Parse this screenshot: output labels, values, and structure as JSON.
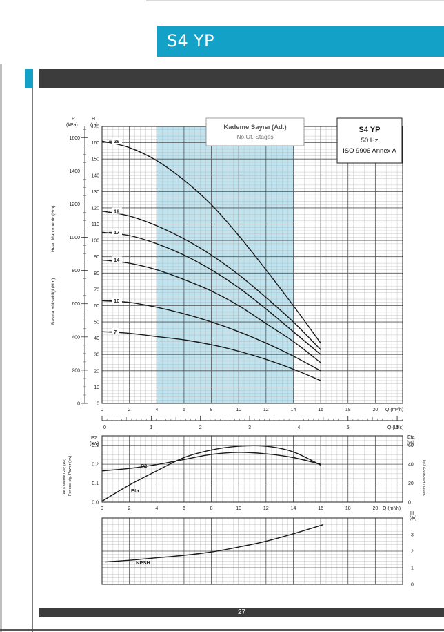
{
  "page": {
    "title": "S4 YP",
    "page_number": "27"
  },
  "chart_data": [
    {
      "type": "line",
      "id": "head",
      "stage_box": {
        "line1": "Kademe Sayısı (Ad.)",
        "line2": "No.Of. Stages"
      },
      "model_box": {
        "line1": "S4 YP",
        "line2": "50 Hz",
        "line3": "ISO 9906 Annex A"
      },
      "y_unit_left": [
        "P",
        "(kPa)"
      ],
      "y_unit_right": [
        "H",
        "(m)"
      ],
      "ylabel_outer": "Head Manometric (Hm)",
      "ylabel_inner": "Basma Yüksekliği (Hm)",
      "xlim": [
        0,
        22
      ],
      "ylim": [
        0,
        170
      ],
      "xticks": [
        0,
        2,
        4,
        6,
        8,
        10,
        12,
        14,
        16,
        18,
        20
      ],
      "xtick_labels": [
        "0",
        "2",
        "4",
        "6",
        "8",
        "10",
        "12",
        "14",
        "16",
        "18",
        "20"
      ],
      "xlabel": "Q (m³/h)",
      "yticks": [
        0,
        10,
        20,
        30,
        40,
        50,
        60,
        70,
        80,
        90,
        100,
        110,
        120,
        130,
        140,
        150,
        160,
        170
      ],
      "ytick_labels": [
        "0",
        "10",
        "20",
        "30",
        "40",
        "50",
        "60",
        "70",
        "80",
        "90",
        "100",
        "110",
        "120",
        "130",
        "140",
        "150",
        "160",
        "170"
      ],
      "kpa_ticks": [
        0,
        200,
        400,
        600,
        800,
        1000,
        1200,
        1400,
        1600
      ],
      "kpa_labels": [
        "0",
        "200",
        "400",
        "600",
        "800",
        "1000",
        "1200",
        "1400",
        "1600"
      ],
      "operating_range": [
        4,
        14
      ],
      "lts_axis": {
        "xlabel": "Q (Lt/s)",
        "ticks": [
          0,
          1,
          2,
          3,
          4,
          5,
          6
        ],
        "tick_labels": [
          "0",
          "1",
          "2",
          "3",
          "4",
          "5",
          "6"
        ]
      },
      "series": [
        {
          "name": "26",
          "x": [
            0,
            2,
            4,
            6,
            8,
            10,
            12,
            14,
            16
          ],
          "y": [
            161,
            157,
            149,
            137,
            122,
            103,
            82,
            60,
            37
          ]
        },
        {
          "name": "19",
          "x": [
            0,
            2,
            4,
            6,
            8,
            10,
            12,
            14,
            16
          ],
          "y": [
            118,
            115,
            109,
            101,
            91,
            79,
            65,
            50,
            33
          ]
        },
        {
          "name": "17",
          "x": [
            0,
            2,
            4,
            6,
            8,
            10,
            12,
            14,
            16
          ],
          "y": [
            105,
            103,
            98,
            91,
            82,
            71,
            58,
            44,
            30
          ]
        },
        {
          "name": "14",
          "x": [
            0,
            2,
            4,
            6,
            8,
            10,
            12,
            14,
            16
          ],
          "y": [
            88,
            86,
            82,
            76,
            69,
            60,
            49,
            38,
            25
          ]
        },
        {
          "name": "10",
          "x": [
            0,
            2,
            4,
            6,
            8,
            10,
            12,
            14,
            16
          ],
          "y": [
            63,
            62,
            59,
            55,
            50,
            44,
            37,
            29,
            20
          ]
        },
        {
          "name": "7",
          "x": [
            0,
            2,
            4,
            6,
            8,
            10,
            12,
            14,
            16
          ],
          "y": [
            44,
            43,
            41,
            39,
            36,
            32,
            27,
            21,
            14
          ]
        }
      ]
    },
    {
      "type": "line",
      "id": "power-efficiency",
      "y_unit_left": [
        "P2",
        "(kw)"
      ],
      "y_unit_right": [
        "Eta",
        "(%)"
      ],
      "ylabel_left_1": "Tek Kademe Güç (kw)",
      "ylabel_left_2": "For one stg. Power (kw)",
      "ylabel_right": "Verim / Efficiency (%)",
      "xlim": [
        0,
        22
      ],
      "ylim": [
        0,
        0.35
      ],
      "yticks": [
        0,
        0.1,
        0.2,
        0.3
      ],
      "ytick_labels": [
        "0.0",
        "0.1",
        "0.2",
        "0.3"
      ],
      "y2lim": [
        0,
        70
      ],
      "y2ticks": [
        0,
        20,
        40,
        60
      ],
      "y2tick_labels": [
        "0",
        "20",
        "40",
        "60"
      ],
      "xticks": [
        0,
        2,
        4,
        6,
        8,
        10,
        12,
        14,
        16,
        18,
        20
      ],
      "xtick_labels": [
        "0",
        "2",
        "4",
        "6",
        "8",
        "10",
        "12",
        "14",
        "16",
        "18",
        "20"
      ],
      "xlabel": "Q (m³/h)",
      "series": [
        {
          "name": "P2",
          "axis": "left",
          "x": [
            0,
            2,
            4,
            6,
            8,
            10,
            12,
            14,
            16
          ],
          "y": [
            0.165,
            0.178,
            0.198,
            0.225,
            0.252,
            0.263,
            0.255,
            0.235,
            0.2
          ]
        },
        {
          "name": "Eta",
          "axis": "right",
          "x": [
            0,
            2,
            4,
            6,
            8,
            10,
            12,
            14,
            16
          ],
          "y": [
            1,
            18,
            33,
            47,
            55,
            59,
            59,
            53,
            39
          ]
        }
      ]
    },
    {
      "type": "line",
      "id": "npsh",
      "y_unit_right": [
        "H",
        "(m)"
      ],
      "xlim": [
        0,
        22
      ],
      "ylim": [
        0,
        4
      ],
      "y2ticks": [
        0,
        1,
        2,
        3,
        4
      ],
      "y2tick_labels": [
        "0",
        "1",
        "2",
        "3",
        "4"
      ],
      "series": [
        {
          "name": "NPSH",
          "x": [
            0.2,
            2,
            4,
            6,
            8,
            10,
            12,
            14,
            16.2
          ],
          "y": [
            1.35,
            1.45,
            1.6,
            1.75,
            1.95,
            2.25,
            2.6,
            3.05,
            3.6
          ]
        }
      ]
    }
  ]
}
